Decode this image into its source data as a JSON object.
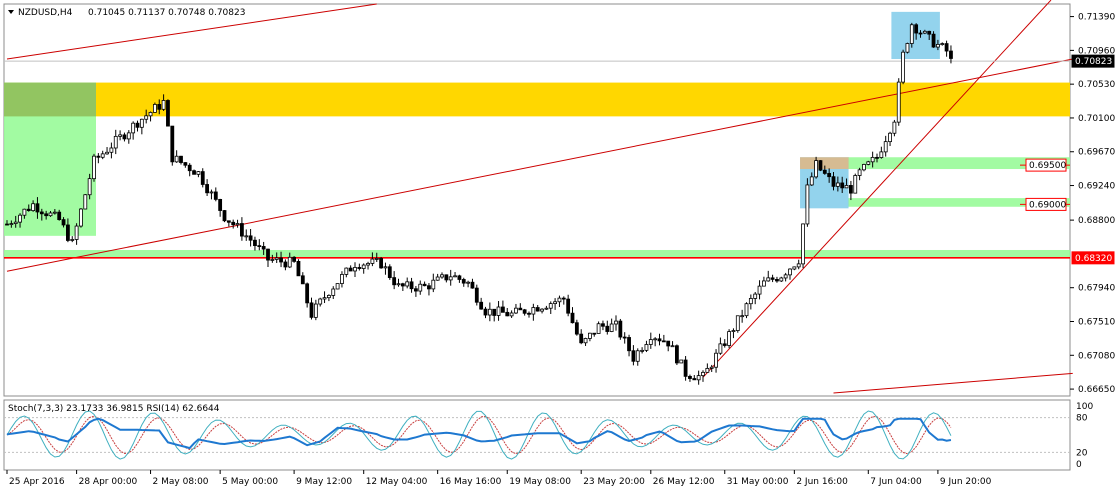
{
  "header": {
    "symbol_tf": "NZDUSD,H4",
    "ohlc": "0.71045 0.71137 0.70748 0.70823"
  },
  "indicator_header": "Stoch(7,3,3) 23.1733 36.9815  RSI(14) 62.6644",
  "chart_data": {
    "type": "candlestick",
    "symbol": "NZDUSD",
    "timeframe": "H4",
    "ylim": [
      0.66562,
      0.7155
    ],
    "y_ticks": [
      0.7139,
      0.7096,
      0.7053,
      0.701,
      0.6967,
      0.6924,
      0.688,
      0.6794,
      0.6751,
      0.6708,
      0.6665
    ],
    "y_tick_labels": [
      "0.71390",
      "0.70960",
      "0.70530",
      "0.70100",
      "0.69670",
      "0.69240",
      "0.68800",
      "0.67940",
      "0.67510",
      "0.67080",
      "0.66650"
    ],
    "x_tick_labels": [
      "25 Apr 2016",
      "28 Apr 00:00",
      "2 May 08:00",
      "5 May 00:00",
      "9 May 12:00",
      "12 May 04:00",
      "16 May 16:00",
      "19 May 08:00",
      "23 May 20:00",
      "26 May 12:00",
      "31 May 00:00",
      "2 Jun 16:00",
      "7 Jun 04:00",
      "9 Jun 20:00"
    ],
    "bars_total": 245,
    "x_tick_bars": [
      0,
      16,
      33,
      49,
      66,
      82,
      99,
      115,
      132,
      148,
      165,
      181,
      198,
      214
    ],
    "anchors": [
      [
        0,
        0.6875
      ],
      [
        6,
        0.69
      ],
      [
        12,
        0.688
      ],
      [
        15,
        0.685
      ],
      [
        20,
        0.6955
      ],
      [
        24,
        0.6975
      ],
      [
        30,
        0.7005
      ],
      [
        36,
        0.703
      ],
      [
        38,
        0.696
      ],
      [
        44,
        0.694
      ],
      [
        50,
        0.6885
      ],
      [
        56,
        0.6855
      ],
      [
        60,
        0.683
      ],
      [
        66,
        0.6825
      ],
      [
        70,
        0.676
      ],
      [
        74,
        0.679
      ],
      [
        80,
        0.6825
      ],
      [
        86,
        0.6825
      ],
      [
        90,
        0.6795
      ],
      [
        96,
        0.6795
      ],
      [
        102,
        0.681
      ],
      [
        106,
        0.68
      ],
      [
        110,
        0.6765
      ],
      [
        116,
        0.676
      ],
      [
        122,
        0.677
      ],
      [
        128,
        0.678
      ],
      [
        132,
        0.672
      ],
      [
        136,
        0.6745
      ],
      [
        140,
        0.6745
      ],
      [
        144,
        0.6705
      ],
      [
        148,
        0.6735
      ],
      [
        152,
        0.6725
      ],
      [
        156,
        0.6685
      ],
      [
        160,
        0.668
      ],
      [
        165,
        0.6725
      ],
      [
        170,
        0.677
      ],
      [
        174,
        0.68
      ],
      [
        178,
        0.681
      ],
      [
        182,
        0.683
      ],
      [
        184,
        0.692
      ],
      [
        186,
        0.695
      ],
      [
        190,
        0.6925
      ],
      [
        194,
        0.692
      ],
      [
        196,
        0.694
      ],
      [
        200,
        0.696
      ],
      [
        204,
        0.701
      ],
      [
        206,
        0.709
      ],
      [
        208,
        0.713
      ],
      [
        212,
        0.711
      ],
      [
        216,
        0.7095
      ],
      [
        217,
        0.7082
      ]
    ],
    "current_price": 0.70823,
    "price_labels": [
      "0.70823",
      "0.68320",
      "0.69500",
      "0.69000"
    ],
    "levels": [
      {
        "name": "support",
        "value": 0.6832,
        "color": "#ff0000"
      },
      {
        "name": "target-1",
        "value": 0.695,
        "color": "#ff0000"
      },
      {
        "name": "target-2",
        "value": 0.69,
        "color": "#ff0000"
      }
    ],
    "zones": [
      {
        "name": "resistance-zone",
        "y_low": 0.7012,
        "y_high": 0.7055,
        "x_from_bar": 0,
        "color": "#ffd700"
      },
      {
        "name": "support-zone",
        "y_low": 0.6832,
        "y_high": 0.6842,
        "x_from_bar": 0,
        "color": "#98fb98"
      },
      {
        "name": "demand-box",
        "y_low": 0.686,
        "y_high": 0.7055,
        "x_from_bar": 0,
        "x_to_bar": 20,
        "color": "#98fb98"
      },
      {
        "name": "target-zone-1",
        "y_low": 0.6945,
        "y_high": 0.696,
        "x_from_bar": 194,
        "color": "#98fb98"
      },
      {
        "name": "target-zone-2",
        "y_low": 0.6897,
        "y_high": 0.6908,
        "x_from_bar": 194,
        "color": "#98fb98"
      },
      {
        "name": "flag-box",
        "y_low": 0.6895,
        "y_high": 0.696,
        "x_from_bar": 183,
        "x_to_bar": 193,
        "color": "#87ceeb"
      },
      {
        "name": "flag-top",
        "y_low": 0.6945,
        "y_high": 0.696,
        "x_from_bar": 183,
        "x_to_bar": 193,
        "color": "#deb887"
      },
      {
        "name": "top-box",
        "y_low": 0.7085,
        "y_high": 0.7145,
        "x_from_bar": 204,
        "x_to_bar": 214,
        "color": "#87ceeb"
      }
    ],
    "trendlines": [
      {
        "name": "channel-upper",
        "from": [
          0,
          0.7085
        ],
        "to": [
          85,
          0.7155
        ],
        "color": "#cc0000"
      },
      {
        "name": "channel-middle",
        "from": [
          0,
          0.6815
        ],
        "to": [
          245,
          0.7085
        ],
        "color": "#cc0000"
      },
      {
        "name": "channel-lower",
        "from": [
          190,
          0.666
        ],
        "to": [
          245,
          0.6685
        ],
        "color": "#cc0000"
      },
      {
        "name": "rising-trend",
        "from": [
          160,
          0.668
        ],
        "to": [
          240,
          0.716
        ],
        "color": "#cc0000"
      }
    ],
    "indicators": {
      "stoch": {
        "k": 23.1733,
        "d": 36.9815,
        "params": "7,3,3"
      },
      "rsi": {
        "value": 62.6644,
        "period": 14
      },
      "ylim": [
        0,
        100
      ],
      "y_tick_labels": [
        "100",
        "80",
        "20",
        "0"
      ]
    }
  }
}
